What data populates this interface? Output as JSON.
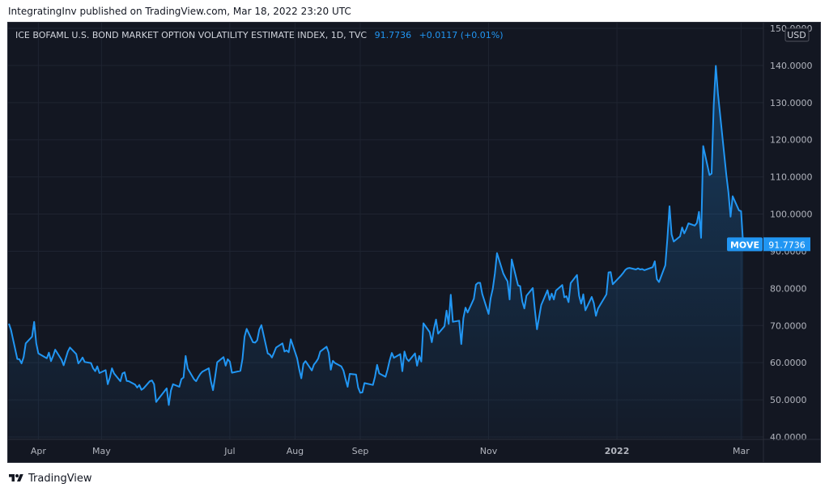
{
  "header": {
    "published_text": "IntegratingInv published on TradingView.com, Mar 18, 2022 23:20 UTC"
  },
  "legend": {
    "title": "ICE BOFAML U.S. BOND MARKET OPTION VOLATILITY ESTIMATE INDEX, 1D, TVC",
    "last_value": "91.7736",
    "change": "+0.0117 (+0.01%)"
  },
  "price_scale": {
    "currency": "USD"
  },
  "last_label": {
    "symbol": "MOVE",
    "value": "91.7736"
  },
  "footer": {
    "brand": "TradingView",
    "logo_icon": "tradingview-logo-icon"
  },
  "colors": {
    "background": "#131722",
    "line": "#2196f3",
    "grid": "#1f2431",
    "text": "#b2b5be",
    "label_bg": "#2196f3"
  },
  "chart_data": {
    "type": "area",
    "title": "ICE BOFAML U.S. BOND MARKET OPTION VOLATILITY ESTIMATE INDEX, 1D, TVC",
    "ylim": [
      40,
      150
    ],
    "y_ticks": [
      "150.0000",
      "140.0000",
      "130.0000",
      "120.0000",
      "110.0000",
      "100.0000",
      "90.0000",
      "80.0000",
      "70.0000",
      "60.0000",
      "50.0000",
      "40.0000"
    ],
    "x_ticks": [
      {
        "label": "Apr",
        "date": "2021-04-01"
      },
      {
        "label": "May",
        "date": "2021-05-01"
      },
      {
        "label": "Jul",
        "date": "2021-07-01"
      },
      {
        "label": "Aug",
        "date": "2021-08-01"
      },
      {
        "label": "Sep",
        "date": "2021-09-01"
      },
      {
        "label": "Nov",
        "date": "2021-11-01"
      },
      {
        "label": "2022",
        "date": "2022-01-01"
      },
      {
        "label": "Mar",
        "date": "2022-03-01"
      }
    ],
    "series": [
      {
        "values": [
          [
            "2021-03-18",
            70.5
          ],
          [
            "2021-03-19",
            68.8
          ],
          [
            "2021-03-22",
            61.0
          ],
          [
            "2021-03-23",
            60.9
          ],
          [
            "2021-03-24",
            59.8
          ],
          [
            "2021-03-25",
            61.5
          ],
          [
            "2021-03-26",
            65.2
          ],
          [
            "2021-03-29",
            67.0
          ],
          [
            "2021-03-30",
            71.0
          ],
          [
            "2021-03-31",
            65.2
          ],
          [
            "2021-04-01",
            62.5
          ],
          [
            "2021-04-05",
            61.2
          ],
          [
            "2021-04-06",
            62.7
          ],
          [
            "2021-04-07",
            60.4
          ],
          [
            "2021-04-08",
            61.8
          ],
          [
            "2021-04-09",
            63.5
          ],
          [
            "2021-04-12",
            60.8
          ],
          [
            "2021-04-13",
            59.3
          ],
          [
            "2021-04-15",
            63.0
          ],
          [
            "2021-04-16",
            64.1
          ],
          [
            "2021-04-19",
            62.3
          ],
          [
            "2021-04-20",
            59.8
          ],
          [
            "2021-04-21",
            60.5
          ],
          [
            "2021-04-22",
            61.4
          ],
          [
            "2021-04-23",
            60.2
          ],
          [
            "2021-04-26",
            59.9
          ],
          [
            "2021-04-27",
            58.5
          ],
          [
            "2021-04-28",
            57.7
          ],
          [
            "2021-04-29",
            59.0
          ],
          [
            "2021-04-30",
            57.2
          ],
          [
            "2021-05-03",
            58.0
          ],
          [
            "2021-05-04",
            54.2
          ],
          [
            "2021-05-05",
            56.0
          ],
          [
            "2021-05-06",
            58.5
          ],
          [
            "2021-05-07",
            57.1
          ],
          [
            "2021-05-10",
            55.0
          ],
          [
            "2021-05-11",
            57.1
          ],
          [
            "2021-05-12",
            57.4
          ],
          [
            "2021-05-13",
            55.1
          ],
          [
            "2021-05-14",
            55.0
          ],
          [
            "2021-05-17",
            54.1
          ],
          [
            "2021-05-18",
            53.3
          ],
          [
            "2021-05-19",
            54.0
          ],
          [
            "2021-05-20",
            52.7
          ],
          [
            "2021-05-21",
            53.1
          ],
          [
            "2021-05-24",
            55.0
          ],
          [
            "2021-05-25",
            55.2
          ],
          [
            "2021-05-26",
            54.2
          ],
          [
            "2021-05-27",
            49.4
          ],
          [
            "2021-05-28",
            50.2
          ],
          [
            "2021-06-01",
            53.1
          ],
          [
            "2021-06-02",
            48.6
          ],
          [
            "2021-06-03",
            52.5
          ],
          [
            "2021-06-04",
            54.2
          ],
          [
            "2021-06-07",
            53.5
          ],
          [
            "2021-06-08",
            55.6
          ],
          [
            "2021-06-09",
            56.0
          ],
          [
            "2021-06-10",
            61.8
          ],
          [
            "2021-06-11",
            58.4
          ],
          [
            "2021-06-14",
            55.5
          ],
          [
            "2021-06-15",
            55.0
          ],
          [
            "2021-06-16",
            56.1
          ],
          [
            "2021-06-17",
            57.0
          ],
          [
            "2021-06-18",
            57.6
          ],
          [
            "2021-06-21",
            58.5
          ],
          [
            "2021-06-22",
            55.0
          ],
          [
            "2021-06-23",
            52.6
          ],
          [
            "2021-06-24",
            56.2
          ],
          [
            "2021-06-25",
            60.1
          ],
          [
            "2021-06-28",
            61.5
          ],
          [
            "2021-06-29",
            59.2
          ],
          [
            "2021-06-30",
            60.9
          ],
          [
            "2021-07-01",
            60.3
          ],
          [
            "2021-07-02",
            57.3
          ],
          [
            "2021-07-06",
            57.8
          ],
          [
            "2021-07-07",
            61.0
          ],
          [
            "2021-07-08",
            67.0
          ],
          [
            "2021-07-09",
            69.1
          ],
          [
            "2021-07-12",
            65.5
          ],
          [
            "2021-07-13",
            65.4
          ],
          [
            "2021-07-14",
            66.0
          ],
          [
            "2021-07-15",
            68.9
          ],
          [
            "2021-07-16",
            70.1
          ],
          [
            "2021-07-19",
            62.5
          ],
          [
            "2021-07-20",
            62.2
          ],
          [
            "2021-07-21",
            61.4
          ],
          [
            "2021-07-22",
            62.7
          ],
          [
            "2021-07-23",
            64.1
          ],
          [
            "2021-07-26",
            65.2
          ],
          [
            "2021-07-27",
            63.0
          ],
          [
            "2021-07-28",
            63.3
          ],
          [
            "2021-07-29",
            62.8
          ],
          [
            "2021-07-30",
            66.3
          ],
          [
            "2021-08-02",
            61.2
          ],
          [
            "2021-08-03",
            58.2
          ],
          [
            "2021-08-04",
            55.8
          ],
          [
            "2021-08-05",
            59.7
          ],
          [
            "2021-08-06",
            60.4
          ],
          [
            "2021-08-09",
            57.9
          ],
          [
            "2021-08-10",
            59.5
          ],
          [
            "2021-08-11",
            60.2
          ],
          [
            "2021-08-12",
            61.1
          ],
          [
            "2021-08-13",
            63.0
          ],
          [
            "2021-08-16",
            64.3
          ],
          [
            "2021-08-17",
            62.7
          ],
          [
            "2021-08-18",
            58.1
          ],
          [
            "2021-08-19",
            60.5
          ],
          [
            "2021-08-20",
            59.9
          ],
          [
            "2021-08-23",
            59.0
          ],
          [
            "2021-08-24",
            57.9
          ],
          [
            "2021-08-25",
            55.6
          ],
          [
            "2021-08-26",
            53.5
          ],
          [
            "2021-08-27",
            57.0
          ],
          [
            "2021-08-30",
            56.8
          ],
          [
            "2021-08-31",
            53.3
          ],
          [
            "2021-09-01",
            51.9
          ],
          [
            "2021-09-02",
            52.0
          ],
          [
            "2021-09-03",
            54.5
          ],
          [
            "2021-09-07",
            54.0
          ],
          [
            "2021-09-08",
            56.2
          ],
          [
            "2021-09-09",
            59.4
          ],
          [
            "2021-09-10",
            57.1
          ],
          [
            "2021-09-13",
            56.2
          ],
          [
            "2021-09-14",
            58.2
          ],
          [
            "2021-09-15",
            60.7
          ],
          [
            "2021-09-16",
            62.6
          ],
          [
            "2021-09-17",
            61.3
          ],
          [
            "2021-09-20",
            62.3
          ],
          [
            "2021-09-21",
            57.7
          ],
          [
            "2021-09-22",
            63.0
          ],
          [
            "2021-09-23",
            61.1
          ],
          [
            "2021-09-24",
            60.4
          ],
          [
            "2021-09-27",
            62.5
          ],
          [
            "2021-09-28",
            59.2
          ],
          [
            "2021-09-29",
            61.8
          ],
          [
            "2021-09-30",
            60.3
          ],
          [
            "2021-10-01",
            70.6
          ],
          [
            "2021-10-04",
            68.2
          ],
          [
            "2021-10-05",
            65.5
          ],
          [
            "2021-10-06",
            69.1
          ],
          [
            "2021-10-07",
            71.6
          ],
          [
            "2021-10-08",
            67.8
          ],
          [
            "2021-10-11",
            69.8
          ],
          [
            "2021-10-12",
            74.0
          ],
          [
            "2021-10-13",
            70.4
          ],
          [
            "2021-10-14",
            78.3
          ],
          [
            "2021-10-15",
            71.0
          ],
          [
            "2021-10-18",
            71.3
          ],
          [
            "2021-10-19",
            65.0
          ],
          [
            "2021-10-20",
            72.0
          ],
          [
            "2021-10-21",
            74.8
          ],
          [
            "2021-10-22",
            73.5
          ],
          [
            "2021-10-25",
            77.2
          ],
          [
            "2021-10-26",
            81.0
          ],
          [
            "2021-10-27",
            81.5
          ],
          [
            "2021-10-28",
            81.5
          ],
          [
            "2021-10-29",
            78.5
          ],
          [
            "2021-11-01",
            73.1
          ],
          [
            "2021-11-02",
            77.4
          ],
          [
            "2021-11-03",
            79.9
          ],
          [
            "2021-11-04",
            84.0
          ],
          [
            "2021-11-05",
            89.5
          ],
          [
            "2021-11-08",
            84.0
          ],
          [
            "2021-11-09",
            82.9
          ],
          [
            "2021-11-10",
            81.9
          ],
          [
            "2021-11-11",
            77.0
          ],
          [
            "2021-11-12",
            87.8
          ],
          [
            "2021-11-15",
            80.8
          ],
          [
            "2021-11-16",
            80.6
          ],
          [
            "2021-11-17",
            76.5
          ],
          [
            "2021-11-18",
            74.6
          ],
          [
            "2021-11-19",
            78.0
          ],
          [
            "2021-11-22",
            80.1
          ],
          [
            "2021-11-23",
            74.2
          ],
          [
            "2021-11-24",
            69.0
          ],
          [
            "2021-11-26",
            75.5
          ],
          [
            "2021-11-29",
            79.5
          ],
          [
            "2021-11-30",
            76.9
          ],
          [
            "2021-12-01",
            78.6
          ],
          [
            "2021-12-02",
            77.0
          ],
          [
            "2021-12-03",
            79.4
          ],
          [
            "2021-12-06",
            80.9
          ],
          [
            "2021-12-07",
            77.6
          ],
          [
            "2021-12-08",
            77.9
          ],
          [
            "2021-12-09",
            76.3
          ],
          [
            "2021-12-10",
            81.4
          ],
          [
            "2021-12-13",
            83.6
          ],
          [
            "2021-12-14",
            78.0
          ],
          [
            "2021-12-15",
            75.9
          ],
          [
            "2021-12-16",
            78.4
          ],
          [
            "2021-12-17",
            74.1
          ],
          [
            "2021-12-20",
            77.7
          ],
          [
            "2021-12-21",
            76.0
          ],
          [
            "2021-12-22",
            72.6
          ],
          [
            "2021-12-23",
            74.6
          ],
          [
            "2021-12-27",
            78.4
          ],
          [
            "2021-12-28",
            84.3
          ],
          [
            "2021-12-29",
            84.4
          ],
          [
            "2021-12-30",
            81.1
          ],
          [
            "2022-01-03",
            83.5
          ],
          [
            "2022-01-04",
            84.2
          ],
          [
            "2022-01-05",
            85.0
          ],
          [
            "2022-01-06",
            85.4
          ],
          [
            "2022-01-07",
            85.5
          ],
          [
            "2022-01-10",
            85.1
          ],
          [
            "2022-01-11",
            85.4
          ],
          [
            "2022-01-12",
            85.1
          ],
          [
            "2022-01-13",
            85.2
          ],
          [
            "2022-01-14",
            84.9
          ],
          [
            "2022-01-18",
            85.7
          ],
          [
            "2022-01-19",
            87.3
          ],
          [
            "2022-01-20",
            82.5
          ],
          [
            "2022-01-21",
            81.7
          ],
          [
            "2022-01-24",
            86.2
          ],
          [
            "2022-01-25",
            93.5
          ],
          [
            "2022-01-26",
            102.1
          ],
          [
            "2022-01-27",
            94.5
          ],
          [
            "2022-01-28",
            92.6
          ],
          [
            "2022-01-31",
            94.0
          ],
          [
            "2022-02-01",
            96.4
          ],
          [
            "2022-02-02",
            94.8
          ],
          [
            "2022-02-03",
            96.0
          ],
          [
            "2022-02-04",
            97.5
          ],
          [
            "2022-02-07",
            96.9
          ],
          [
            "2022-02-08",
            97.6
          ],
          [
            "2022-02-09",
            100.6
          ],
          [
            "2022-02-10",
            93.6
          ],
          [
            "2022-02-11",
            118.3
          ],
          [
            "2022-02-14",
            110.5
          ],
          [
            "2022-02-15",
            110.9
          ],
          [
            "2022-02-16",
            129.3
          ],
          [
            "2022-02-17",
            139.9
          ],
          [
            "2022-02-18",
            132.5
          ],
          [
            "2022-02-22",
            110.5
          ],
          [
            "2022-02-23",
            105.8
          ],
          [
            "2022-02-24",
            99.3
          ],
          [
            "2022-02-25",
            104.8
          ],
          [
            "2022-02-28",
            101.0
          ],
          [
            "2022-03-01",
            100.8
          ],
          [
            "2022-03-02",
            91.77
          ]
        ]
      }
    ]
  }
}
